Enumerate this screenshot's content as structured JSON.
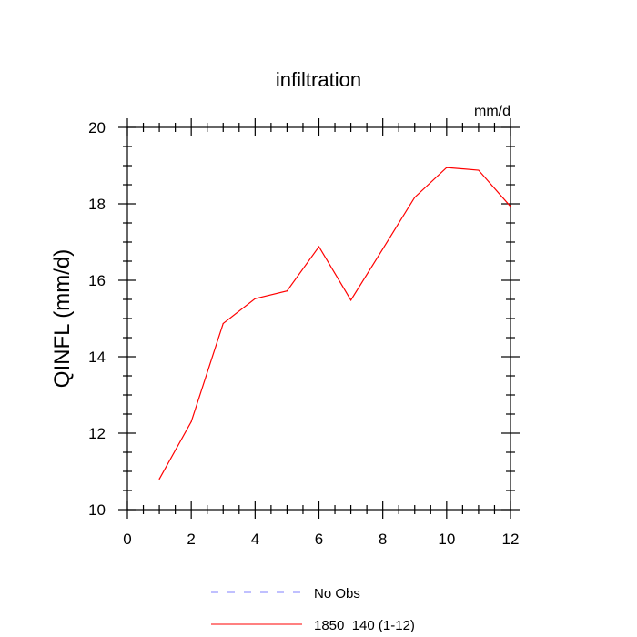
{
  "chart_data": {
    "type": "line",
    "title": "infiltration",
    "units": "mm/d",
    "xlabel": "",
    "ylabel": "QINFL  (mm/d)",
    "xlim": [
      0,
      12
    ],
    "ylim": [
      10,
      20
    ],
    "x_ticks": [
      "0",
      "2",
      "4",
      "6",
      "8",
      "10",
      "12"
    ],
    "y_ticks": [
      "10",
      "12",
      "14",
      "16",
      "18",
      "20"
    ],
    "grid": false,
    "legend_position": "bottom",
    "series": [
      {
        "name": "No Obs",
        "color": "#8080ff",
        "dash": "dashed",
        "x": [],
        "y": []
      },
      {
        "name": "1850_140 (1-12)",
        "color": "#ff0000",
        "dash": "solid",
        "x": [
          1,
          2,
          3,
          4,
          5,
          6,
          7,
          8,
          9,
          10,
          11,
          12
        ],
        "y": [
          10.8,
          12.3,
          14.87,
          15.52,
          15.72,
          16.88,
          15.48,
          16.82,
          18.17,
          18.95,
          18.88,
          17.93
        ]
      }
    ]
  }
}
